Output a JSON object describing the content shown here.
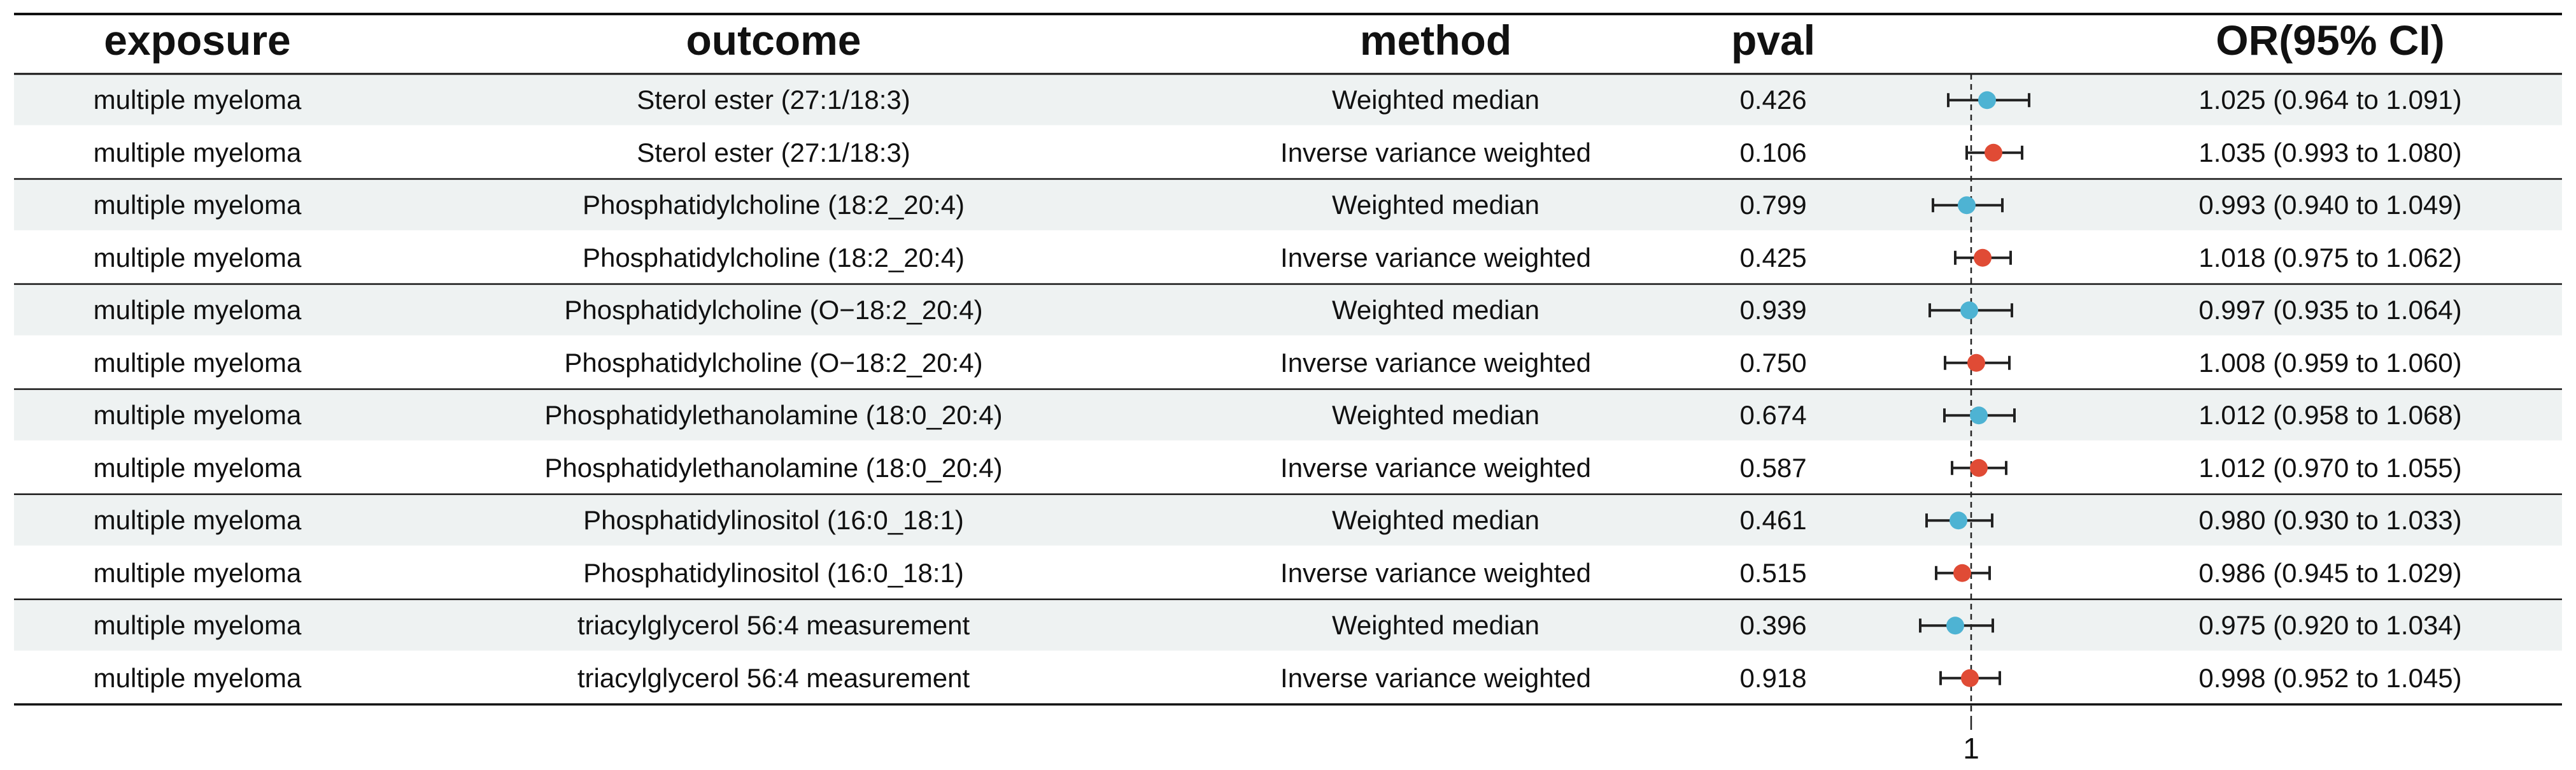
{
  "chart_data": {
    "type": "forest",
    "columns": [
      "exposure",
      "outcome",
      "method",
      "pval",
      "OR(95% CI)"
    ],
    "reference_line": 1,
    "x_tick_labels": [
      "1"
    ],
    "marker_colors": {
      "Weighted median": "#4EB3D3",
      "Inverse variance weighted": "#E04B35"
    },
    "row_band_color": "#EEF2F2",
    "rows": [
      {
        "exposure": "multiple myeloma",
        "outcome": "Sterol ester (27:1/18:3)",
        "method": "Weighted median",
        "pval": "0.426",
        "or": 1.025,
        "lo": 0.964,
        "hi": 1.091,
        "or_text": "1.025 (0.964 to 1.091)"
      },
      {
        "exposure": "multiple myeloma",
        "outcome": "Sterol ester (27:1/18:3)",
        "method": "Inverse variance weighted",
        "pval": "0.106",
        "or": 1.035,
        "lo": 0.993,
        "hi": 1.08,
        "or_text": "1.035 (0.993 to 1.080)"
      },
      {
        "exposure": "multiple myeloma",
        "outcome": "Phosphatidylcholine (18:2_20:4)",
        "method": "Weighted median",
        "pval": "0.799",
        "or": 0.993,
        "lo": 0.94,
        "hi": 1.049,
        "or_text": "0.993 (0.940 to 1.049)"
      },
      {
        "exposure": "multiple myeloma",
        "outcome": "Phosphatidylcholine (18:2_20:4)",
        "method": "Inverse variance weighted",
        "pval": "0.425",
        "or": 1.018,
        "lo": 0.975,
        "hi": 1.062,
        "or_text": "1.018 (0.975 to 1.062)"
      },
      {
        "exposure": "multiple myeloma",
        "outcome": "Phosphatidylcholine (O−18:2_20:4)",
        "method": "Weighted median",
        "pval": "0.939",
        "or": 0.997,
        "lo": 0.935,
        "hi": 1.064,
        "or_text": "0.997 (0.935 to 1.064)"
      },
      {
        "exposure": "multiple myeloma",
        "outcome": "Phosphatidylcholine (O−18:2_20:4)",
        "method": "Inverse variance weighted",
        "pval": "0.750",
        "or": 1.008,
        "lo": 0.959,
        "hi": 1.06,
        "or_text": "1.008 (0.959 to 1.060)"
      },
      {
        "exposure": "multiple myeloma",
        "outcome": "Phosphatidylethanolamine (18:0_20:4)",
        "method": "Weighted median",
        "pval": "0.674",
        "or": 1.012,
        "lo": 0.958,
        "hi": 1.068,
        "or_text": "1.012 (0.958 to 1.068)"
      },
      {
        "exposure": "multiple myeloma",
        "outcome": "Phosphatidylethanolamine (18:0_20:4)",
        "method": "Inverse variance weighted",
        "pval": "0.587",
        "or": 1.012,
        "lo": 0.97,
        "hi": 1.055,
        "or_text": "1.012 (0.970 to 1.055)"
      },
      {
        "exposure": "multiple myeloma",
        "outcome": "Phosphatidylinositol (16:0_18:1)",
        "method": "Weighted median",
        "pval": "0.461",
        "or": 0.98,
        "lo": 0.93,
        "hi": 1.033,
        "or_text": "0.980 (0.930 to 1.033)"
      },
      {
        "exposure": "multiple myeloma",
        "outcome": "Phosphatidylinositol (16:0_18:1)",
        "method": "Inverse variance weighted",
        "pval": "0.515",
        "or": 0.986,
        "lo": 0.945,
        "hi": 1.029,
        "or_text": "0.986 (0.945 to 1.029)"
      },
      {
        "exposure": "multiple myeloma",
        "outcome": "triacylglycerol 56:4 measurement",
        "method": "Weighted median",
        "pval": "0.396",
        "or": 0.975,
        "lo": 0.92,
        "hi": 1.034,
        "or_text": "0.975 (0.920 to 1.034)"
      },
      {
        "exposure": "multiple myeloma",
        "outcome": "triacylglycerol 56:4 measurement",
        "method": "Inverse variance weighted",
        "pval": "0.918",
        "or": 0.998,
        "lo": 0.952,
        "hi": 1.045,
        "or_text": "0.998 (0.952 to 1.045)"
      }
    ]
  }
}
